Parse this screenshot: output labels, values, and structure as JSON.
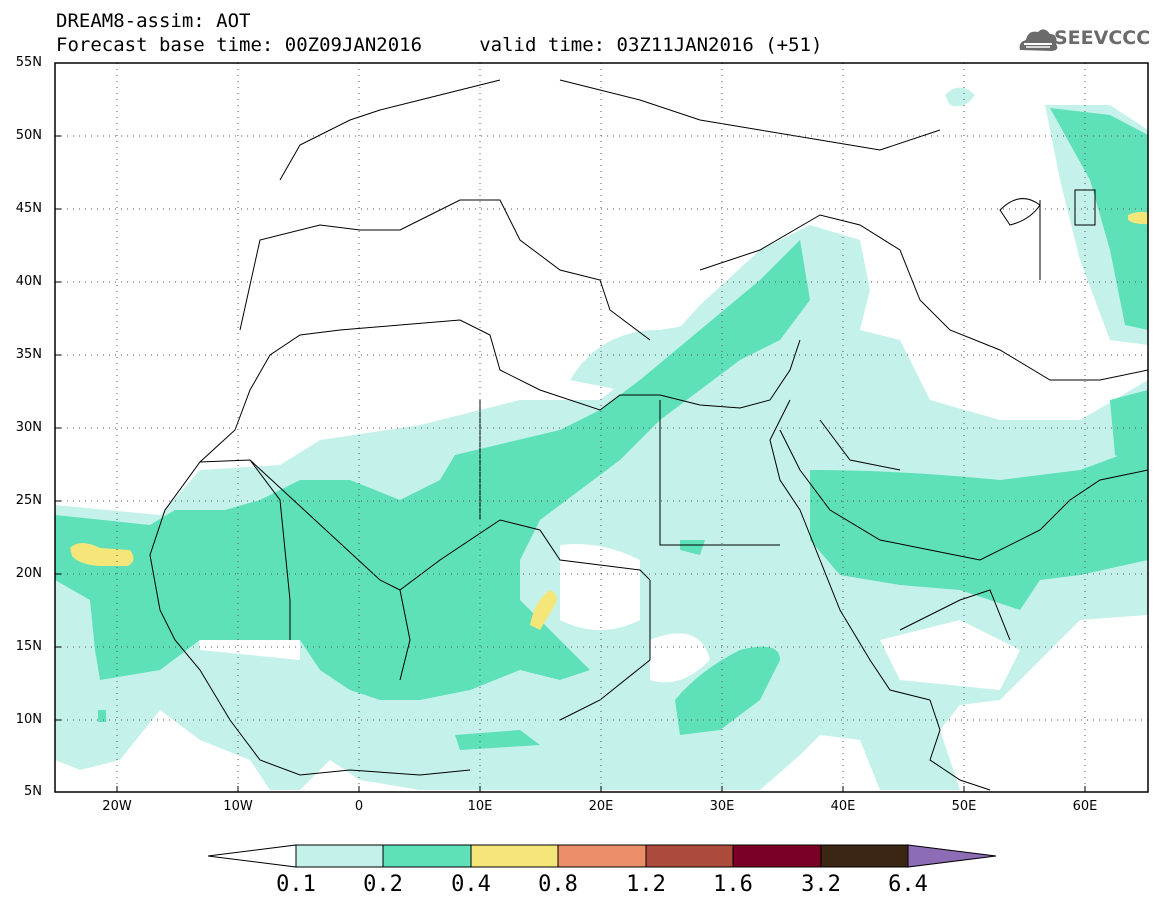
{
  "header": {
    "line1": "DREAM8-assim: AOT",
    "line2": "Forecast base time: 00Z09JAN2016     valid time: 03Z11JAN2016 (+51)"
  },
  "logo": {
    "text": "SEEVCCC",
    "icon": "cloud-icon"
  },
  "map": {
    "lat_labels": [
      "55N",
      "50N",
      "45N",
      "40N",
      "35N",
      "30N",
      "25N",
      "20N",
      "15N",
      "10N",
      "5N"
    ],
    "lon_labels": [
      "20W",
      "10W",
      "0",
      "10E",
      "20E",
      "30E",
      "40E",
      "50E",
      "60E"
    ],
    "lat_range": [
      5,
      55
    ],
    "lon_range": [
      -25,
      65
    ],
    "grid": "dotted"
  },
  "colorbar": {
    "labels": [
      "0.1",
      "0.2",
      "0.4",
      "0.8",
      "1.2",
      "1.6",
      "3.2",
      "6.4"
    ],
    "colors": [
      "#ffffff",
      "#c4f2ea",
      "#5ee0b8",
      "#f5e67a",
      "#ea8e67",
      "#ac4b3b",
      "#7a0026",
      "#3b2513",
      "#8c6cb4"
    ]
  }
}
